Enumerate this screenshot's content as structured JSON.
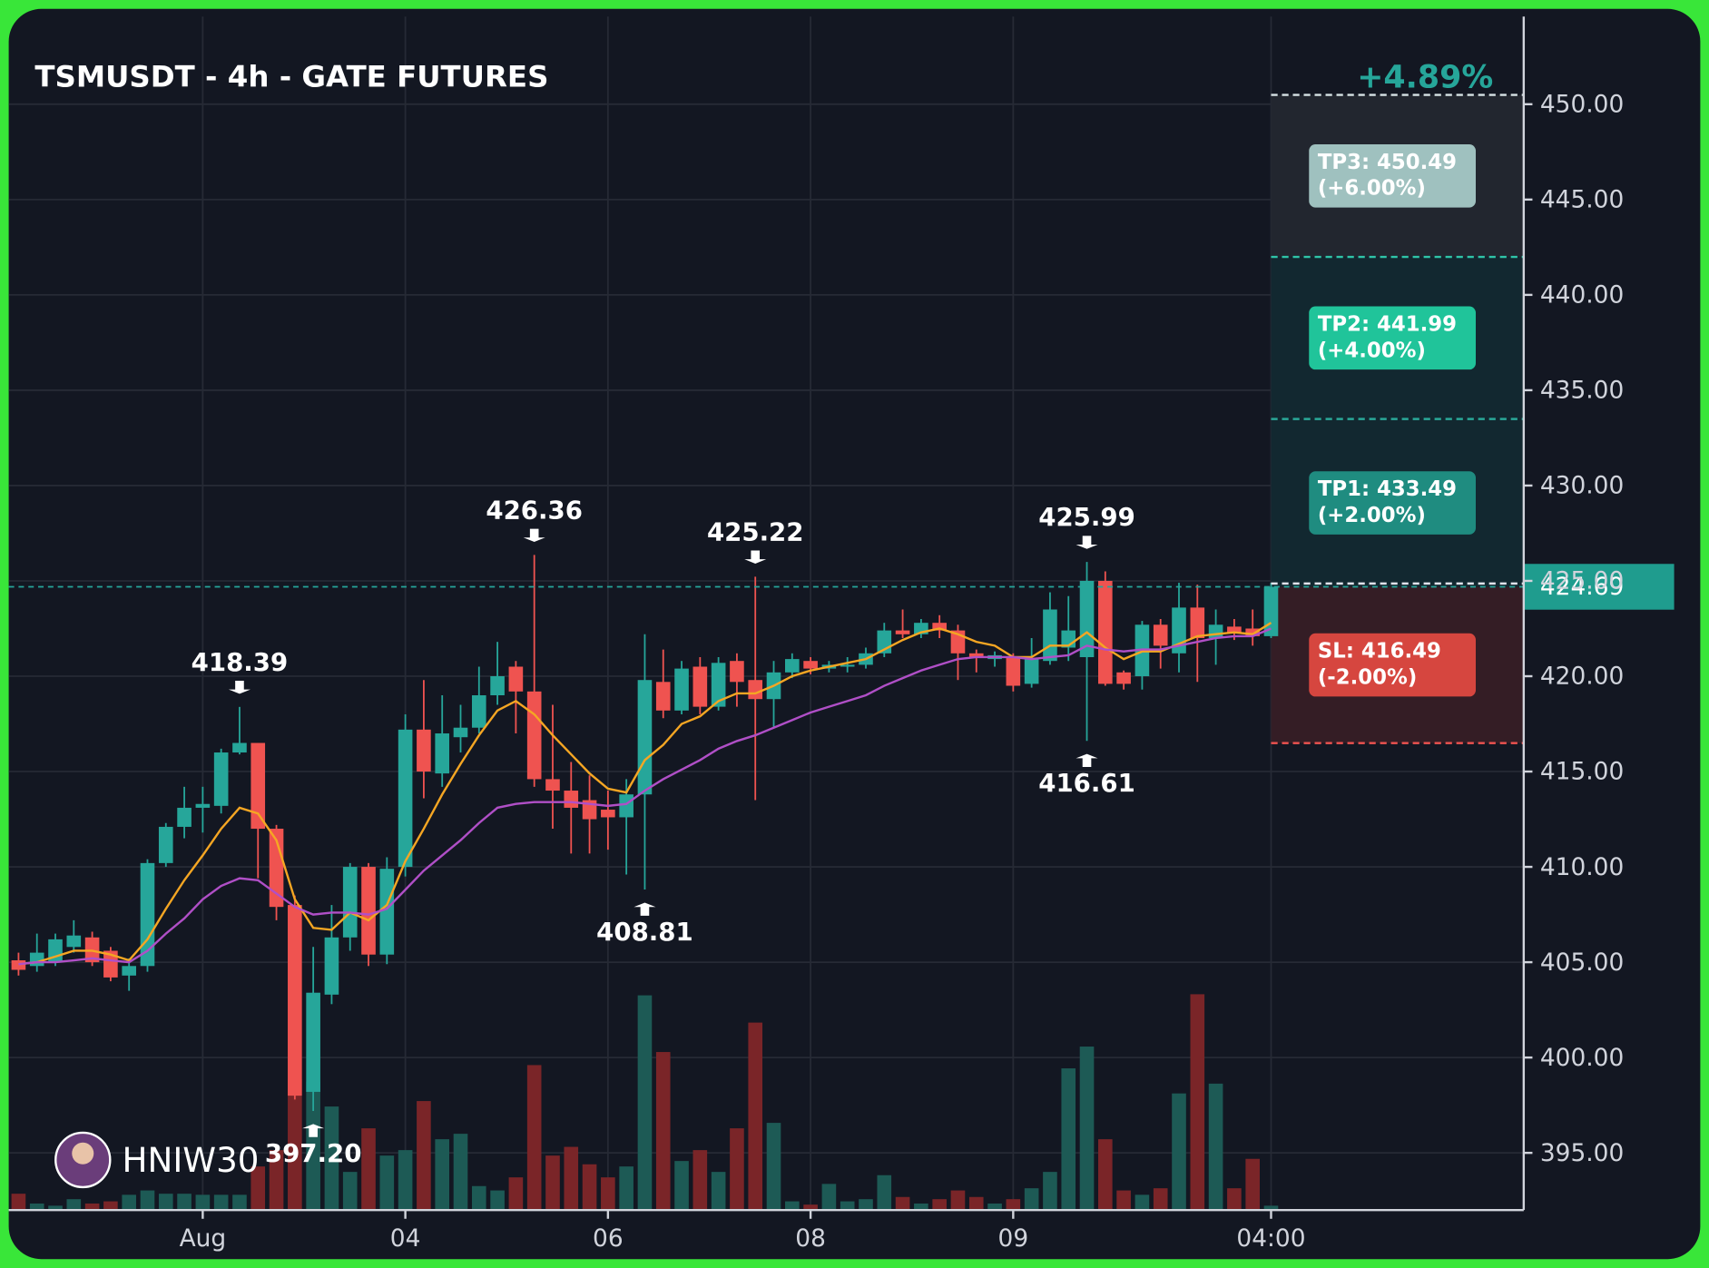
{
  "chart_data": {
    "type": "candlestick",
    "title": "TSMUSDT - 4h - GATE FUTURES",
    "watermark": "HNIW30",
    "change_label": "+4.89%",
    "up_color": "#26a69a",
    "down_color": "#ef5350",
    "volume_up_color": "#1d5a55",
    "volume_down_color": "#7a2528",
    "open": [
      405.1,
      404.8,
      405.0,
      405.8,
      406.3,
      405.6,
      404.3,
      404.8,
      410.2,
      412.1,
      413.1,
      413.2,
      416.0,
      416.5,
      412.0,
      408.0,
      398.2,
      403.3,
      406.3,
      410.0,
      405.4,
      410.0,
      417.2,
      414.9,
      416.8,
      417.3,
      419.0,
      420.5,
      419.2,
      414.6,
      414.0,
      413.5,
      413.0,
      412.6,
      413.8,
      419.7,
      418.2,
      420.5,
      418.4,
      420.8,
      419.8,
      418.8,
      420.2,
      420.8,
      420.4,
      420.5,
      420.6,
      421.2,
      422.4,
      422.2,
      422.8,
      422.4,
      421.2,
      420.9,
      421.0,
      419.6,
      420.8,
      421.5,
      421.0,
      425.0,
      420.2,
      420.0,
      422.7,
      421.2,
      423.6,
      422.0,
      422.6,
      422.5,
      422.1
    ],
    "high": [
      405.5,
      406.5,
      406.5,
      407.2,
      406.6,
      405.8,
      405.2,
      410.4,
      412.3,
      414.2,
      414.2,
      416.2,
      418.39,
      416.5,
      412.2,
      408.5,
      405.8,
      408.0,
      410.2,
      410.2,
      410.5,
      418.0,
      419.8,
      419.0,
      418.5,
      420.5,
      421.8,
      420.8,
      426.36,
      418.5,
      415.5,
      414.8,
      414.0,
      414.6,
      422.2,
      421.4,
      420.8,
      421.0,
      421.0,
      421.2,
      425.22,
      420.8,
      421.2,
      421.0,
      420.8,
      421.0,
      421.5,
      422.8,
      423.5,
      423.0,
      423.2,
      422.7,
      421.4,
      421.3,
      421.2,
      422.0,
      424.4,
      424.2,
      425.99,
      425.5,
      420.3,
      422.9,
      423.0,
      424.9,
      424.8,
      423.5,
      423.0,
      423.5,
      424.9
    ],
    "low": [
      404.3,
      404.5,
      404.8,
      405.5,
      404.8,
      404.0,
      403.5,
      404.5,
      410.0,
      411.5,
      411.8,
      412.8,
      415.9,
      409.4,
      407.2,
      397.8,
      397.2,
      402.8,
      405.6,
      404.8,
      404.9,
      409.5,
      413.6,
      414.2,
      416.0,
      417.0,
      418.5,
      417.0,
      414.2,
      412.0,
      410.7,
      410.7,
      410.9,
      409.6,
      408.81,
      417.8,
      418.0,
      418.0,
      418.2,
      418.4,
      413.5,
      417.3,
      419.9,
      420.1,
      420.2,
      420.2,
      420.4,
      421.0,
      422.0,
      422.0,
      422.0,
      419.8,
      420.2,
      420.5,
      419.2,
      419.4,
      420.6,
      420.8,
      416.61,
      419.5,
      419.3,
      419.3,
      420.4,
      420.2,
      419.7,
      420.6,
      421.9,
      421.6,
      422.0
    ],
    "close": [
      404.6,
      405.5,
      406.2,
      406.4,
      405.0,
      404.2,
      404.8,
      410.2,
      412.1,
      413.1,
      413.3,
      416.0,
      416.5,
      412.0,
      407.9,
      398.0,
      403.4,
      406.3,
      410.0,
      405.4,
      409.9,
      417.2,
      415.0,
      417.0,
      417.3,
      419.0,
      420.0,
      419.2,
      414.6,
      414.0,
      413.1,
      412.5,
      412.6,
      413.8,
      419.8,
      418.2,
      420.4,
      418.4,
      420.7,
      419.7,
      418.8,
      420.2,
      420.9,
      420.4,
      420.6,
      420.6,
      421.2,
      422.4,
      422.2,
      422.8,
      422.4,
      421.2,
      421.0,
      421.1,
      419.5,
      420.9,
      423.5,
      422.4,
      425.0,
      419.6,
      419.6,
      422.7,
      421.6,
      423.6,
      422.0,
      422.7,
      422.3,
      422.1,
      424.69
    ],
    "volume": [
      15,
      6,
      4,
      10,
      6,
      8,
      14,
      18,
      15,
      15,
      14,
      14,
      14,
      40,
      55,
      120,
      118,
      95,
      35,
      75,
      50,
      55,
      100,
      65,
      70,
      22,
      18,
      30,
      133,
      50,
      58,
      42,
      30,
      40,
      197,
      145,
      45,
      55,
      35,
      75,
      172,
      80,
      8,
      5,
      24,
      8,
      10,
      32,
      12,
      6,
      10,
      18,
      12,
      6,
      10,
      20,
      35,
      130,
      150,
      65,
      18,
      14,
      20,
      107,
      198,
      116,
      20,
      47,
      4
    ],
    "moving_averages": [
      {
        "color": "#f5a623",
        "values": [
          404.9,
          405.0,
          405.3,
          405.6,
          405.6,
          405.4,
          405.1,
          406.2,
          407.8,
          409.3,
          410.6,
          412.0,
          413.1,
          412.8,
          411.4,
          408.3,
          406.8,
          406.7,
          407.6,
          407.2,
          408.0,
          410.3,
          412.0,
          413.8,
          415.4,
          416.9,
          418.2,
          418.7,
          418.0,
          416.9,
          415.9,
          414.9,
          414.1,
          413.9,
          415.6,
          416.4,
          417.5,
          417.9,
          418.7,
          419.1,
          419.1,
          419.5,
          420.0,
          420.3,
          420.5,
          420.7,
          420.9,
          421.4,
          421.9,
          422.3,
          422.5,
          422.2,
          421.8,
          421.6,
          421.0,
          421.0,
          421.6,
          421.6,
          422.3,
          421.5,
          420.9,
          421.3,
          421.3,
          421.7,
          422.1,
          422.2,
          422.3,
          422.2,
          422.8
        ]
      },
      {
        "color": "#b04fc7",
        "values": [
          404.9,
          405.0,
          405.0,
          405.1,
          405.2,
          405.1,
          405.0,
          405.6,
          406.5,
          407.3,
          408.3,
          409.0,
          409.4,
          409.3,
          408.6,
          407.9,
          407.5,
          407.6,
          407.6,
          407.5,
          407.8,
          408.8,
          409.8,
          410.6,
          411.4,
          412.3,
          413.1,
          413.3,
          413.4,
          413.4,
          413.4,
          413.3,
          413.2,
          413.3,
          414.0,
          414.6,
          415.1,
          415.6,
          416.2,
          416.6,
          416.9,
          417.3,
          417.7,
          418.1,
          418.4,
          418.7,
          419.0,
          419.5,
          419.9,
          420.3,
          420.6,
          420.9,
          421.0,
          421.0,
          421.0,
          420.9,
          421.0,
          421.1,
          421.6,
          421.4,
          421.3,
          421.4,
          421.4,
          421.6,
          421.8,
          422.0,
          422.1,
          422.1,
          422.5
        ]
      }
    ],
    "markers": [
      {
        "index": 12,
        "side": "high",
        "value": 418.39
      },
      {
        "index": 28,
        "side": "high",
        "value": 426.36
      },
      {
        "index": 40,
        "side": "high",
        "value": 425.22
      },
      {
        "index": 58,
        "side": "high",
        "value": 425.99
      },
      {
        "index": 16,
        "side": "low",
        "value": 397.2,
        "label": "397.20"
      },
      {
        "index": 34,
        "side": "low",
        "value": 408.81
      },
      {
        "index": 58,
        "side": "low",
        "value": 416.61
      }
    ],
    "targets": [
      {
        "label": "TP3: 450.49",
        "percent": "(+6.00%)",
        "value": 450.49,
        "color": "#9fc1bf",
        "line_color": "#d8e3e6"
      },
      {
        "label": "TP2: 441.99",
        "percent": "(+4.00%)",
        "value": 441.99,
        "color": "#20c49a",
        "line_color": "#2fc4a8"
      },
      {
        "label": "TP1: 433.49",
        "percent": "(+2.00%)",
        "value": 433.49,
        "color": "#1f8c80",
        "line_color": "#2aa898"
      }
    ],
    "stop": {
      "label": "SL: 416.49",
      "percent": "(-2.00%)",
      "value": 416.49,
      "color": "#d6463f",
      "line_color": "#ef5350"
    },
    "ylim": [
      392,
      454.6
    ],
    "yticks": [
      {
        "value": 395,
        "label": "395.00"
      },
      {
        "value": 400,
        "label": "400.00"
      },
      {
        "value": 405,
        "label": "405.00"
      },
      {
        "value": 410,
        "label": "410.00"
      },
      {
        "value": 415,
        "label": "415.00"
      },
      {
        "value": 420,
        "label": "420.00"
      },
      {
        "value": 425,
        "label": "425.00"
      },
      {
        "value": 430,
        "label": "430.00"
      },
      {
        "value": 435,
        "label": "435.00"
      },
      {
        "value": 440,
        "label": "440.00"
      },
      {
        "value": 445,
        "label": "445.00"
      },
      {
        "value": 450,
        "label": "450.00"
      }
    ],
    "xticks": [
      {
        "value": 10,
        "label": "Aug"
      },
      {
        "value": 21,
        "label": "04"
      },
      {
        "value": 32,
        "label": "06"
      },
      {
        "value": 43,
        "label": "08"
      },
      {
        "value": 54,
        "label": "09"
      },
      {
        "value": 68,
        "label": "04:00"
      }
    ],
    "grid": true
  }
}
